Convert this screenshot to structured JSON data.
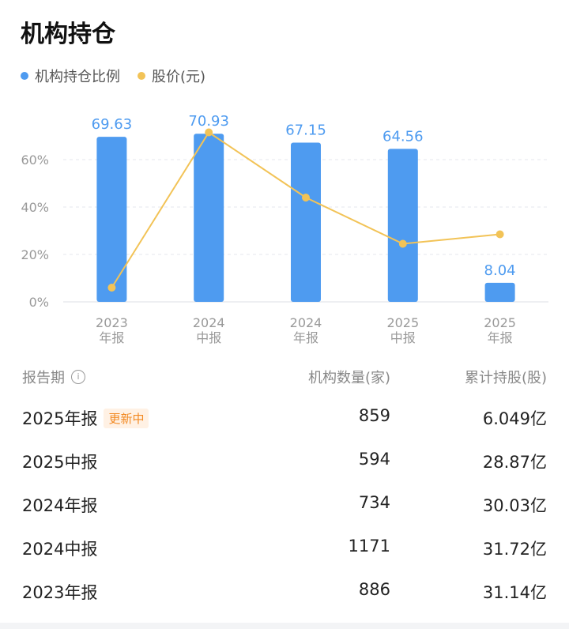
{
  "title": "机构持仓",
  "legend": [
    {
      "label": "机构持仓比例",
      "color": "#4e9bf0"
    },
    {
      "label": "股价(元)",
      "color": "#f2c357"
    }
  ],
  "chart_data": {
    "type": "bar",
    "categories": [
      [
        "2023",
        "年报"
      ],
      [
        "2024",
        "中报"
      ],
      [
        "2024",
        "年报"
      ],
      [
        "2025",
        "中报"
      ],
      [
        "2025",
        "年报"
      ]
    ],
    "series": [
      {
        "name": "机构持仓比例",
        "type": "bar",
        "values": [
          69.63,
          70.93,
          67.15,
          64.56,
          8.04
        ],
        "color": "#4e9bf0"
      },
      {
        "name": "股价(元)",
        "type": "line",
        "values": [
          6,
          71.5,
          44,
          24.5,
          28.5
        ],
        "color": "#f2c357"
      }
    ],
    "y_ticks": [
      "0%",
      "20%",
      "40%",
      "60%"
    ],
    "ylim": [
      0,
      80
    ],
    "grid": true
  },
  "table": {
    "headers": {
      "period": "报告期",
      "info_icon": "i",
      "count": "机构数量(家)",
      "shares": "累计持股(股)"
    },
    "rows": [
      {
        "period": "2025年报",
        "badge": "更新中",
        "count": "859",
        "shares": "6.049亿"
      },
      {
        "period": "2025中报",
        "badge": "",
        "count": "594",
        "shares": "28.87亿"
      },
      {
        "period": "2024年报",
        "badge": "",
        "count": "734",
        "shares": "30.03亿"
      },
      {
        "period": "2024中报",
        "badge": "",
        "count": "1171",
        "shares": "31.72亿"
      },
      {
        "period": "2023年报",
        "badge": "",
        "count": "886",
        "shares": "31.14亿"
      }
    ]
  }
}
